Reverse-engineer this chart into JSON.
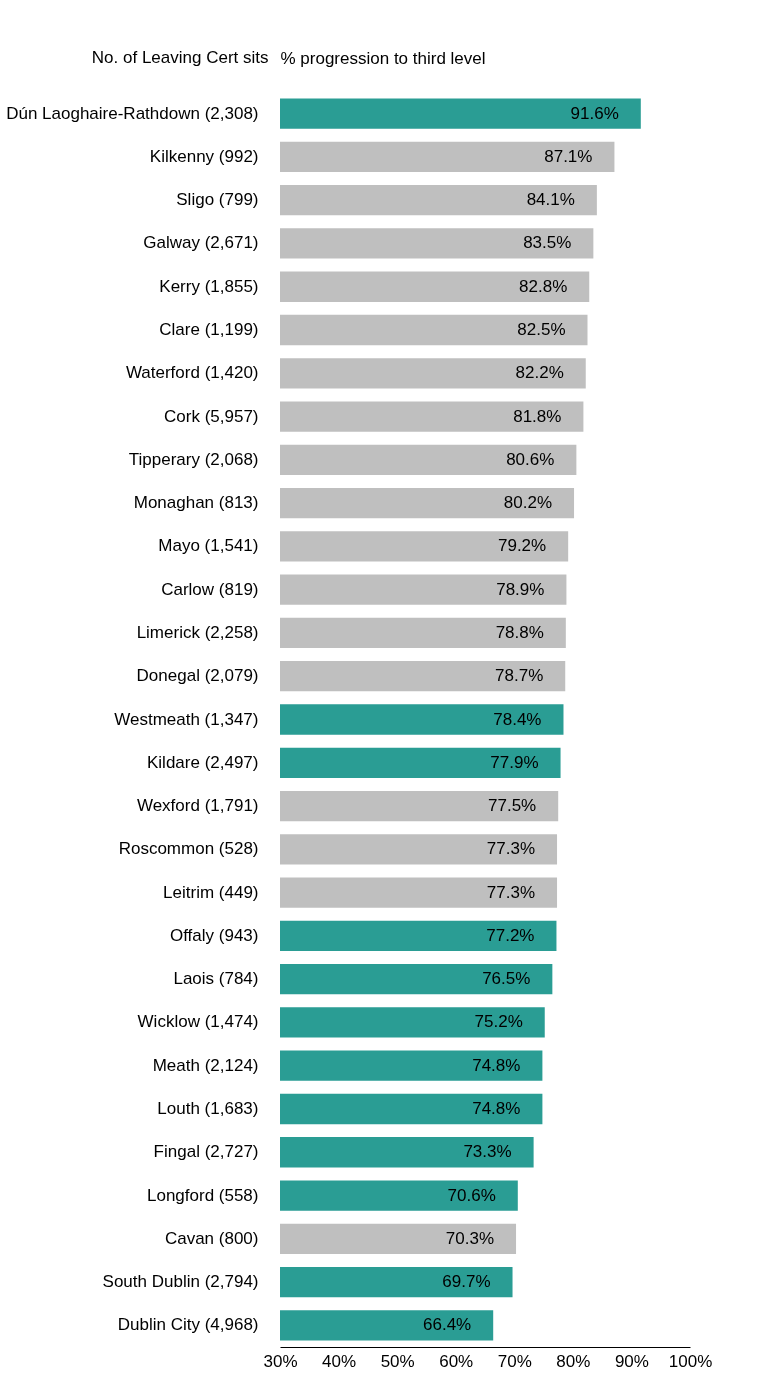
{
  "chart_data": {
    "type": "bar",
    "orientation": "horizontal",
    "xlabel": "% progression to third level",
    "ylabel": "No. of Leaving Cert sits",
    "categories": [
      "Dún Laoghaire-Rathdown (2,308)",
      "Kilkenny (992)",
      "Sligo (799)",
      "Galway (2,671)",
      "Kerry (1,855)",
      "Clare (1,199)",
      "Waterford (1,420)",
      "Cork (5,957)",
      "Tipperary (2,068)",
      "Monaghan (813)",
      "Mayo (1,541)",
      "Carlow (819)",
      "Limerick (2,258)",
      "Donegal (2,079)",
      "Westmeath (1,347)",
      "Kildare (2,497)",
      "Wexford (1,791)",
      "Roscommon (528)",
      "Leitrim (449)",
      "Offaly (943)",
      "Laois (784)",
      "Wicklow (1,474)",
      "Meath (2,124)",
      "Louth (1,683)",
      "Fingal (2,727)",
      "Longford (558)",
      "Cavan (800)",
      "South Dublin (2,794)",
      "Dublin City (4,968)"
    ],
    "values": [
      91.6,
      87.1,
      84.1,
      83.5,
      82.8,
      82.5,
      82.2,
      81.8,
      80.6,
      80.2,
      79.2,
      78.9,
      78.8,
      78.7,
      78.4,
      77.9,
      77.5,
      77.3,
      77.3,
      77.2,
      76.5,
      75.2,
      74.8,
      74.8,
      73.3,
      70.6,
      70.3,
      69.7,
      66.4
    ],
    "value_labels": [
      "91.6%",
      "87.1%",
      "84.1%",
      "83.5%",
      "82.8%",
      "82.5%",
      "82.2%",
      "81.8%",
      "80.6%",
      "80.2%",
      "79.2%",
      "78.9%",
      "78.8%",
      "78.7%",
      "78.4%",
      "77.9%",
      "77.5%",
      "77.3%",
      "77.3%",
      "77.2%",
      "76.5%",
      "75.2%",
      "74.8%",
      "74.8%",
      "73.3%",
      "70.6%",
      "70.3%",
      "69.7%",
      "66.4%"
    ],
    "colors": [
      "#2a9d94",
      "#bfbfbf",
      "#bfbfbf",
      "#bfbfbf",
      "#bfbfbf",
      "#bfbfbf",
      "#bfbfbf",
      "#bfbfbf",
      "#bfbfbf",
      "#bfbfbf",
      "#bfbfbf",
      "#bfbfbf",
      "#bfbfbf",
      "#bfbfbf",
      "#2a9d94",
      "#2a9d94",
      "#bfbfbf",
      "#bfbfbf",
      "#bfbfbf",
      "#2a9d94",
      "#2a9d94",
      "#2a9d94",
      "#2a9d94",
      "#2a9d94",
      "#2a9d94",
      "#2a9d94",
      "#bfbfbf",
      "#2a9d94",
      "#2a9d94"
    ],
    "xlim": [
      30,
      100
    ],
    "xticks": [
      {
        "value": 30,
        "label": "30%"
      },
      {
        "value": 40,
        "label": "40%"
      },
      {
        "value": 50,
        "label": "50%"
      },
      {
        "value": 60,
        "label": "60%"
      },
      {
        "value": 70,
        "label": "70%"
      },
      {
        "value": 80,
        "label": "80%"
      },
      {
        "value": 90,
        "label": "90%"
      },
      {
        "value": 100,
        "label": "100%"
      }
    ],
    "grid": false,
    "legend": false
  }
}
